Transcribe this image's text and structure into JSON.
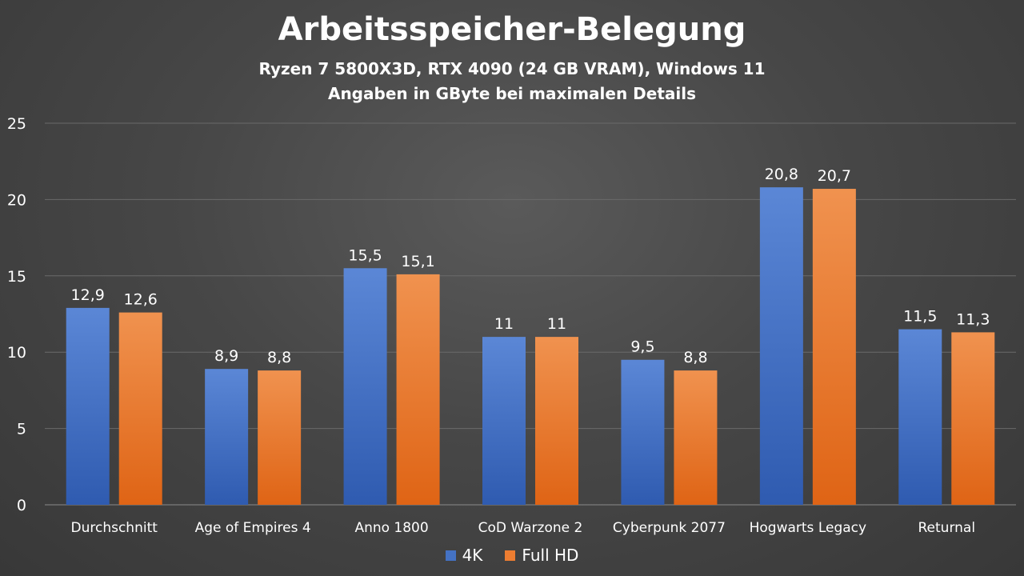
{
  "chart_data": {
    "type": "bar",
    "title": "Arbeitsspeicher-Belegung",
    "subtitle": [
      "Ryzen 7 5800X3D, RTX 4090 (24 GB VRAM), Windows 11",
      "Angaben in GByte bei maximalen Details"
    ],
    "categories": [
      "Durchschnitt",
      "Age of Empires 4",
      "Anno 1800",
      "CoD Warzone 2",
      "Cyberpunk 2077",
      "Hogwarts Legacy",
      "Returnal"
    ],
    "series": [
      {
        "name": "4K",
        "values": [
          12.9,
          8.9,
          15.5,
          11,
          9.5,
          20.8,
          11.5
        ],
        "labels": [
          "12,9",
          "8,9",
          "15,5",
          "11",
          "9,5",
          "20,8",
          "11,5"
        ],
        "color": "#4472c4"
      },
      {
        "name": "Full HD",
        "values": [
          12.6,
          8.8,
          15.1,
          11,
          8.8,
          20.7,
          11.3
        ],
        "labels": [
          "12,6",
          "8,8",
          "15,1",
          "11",
          "8,8",
          "20,7",
          "11,3"
        ],
        "color": "#ed7d31"
      }
    ],
    "ylim": [
      0,
      25
    ],
    "yticks": [
      0,
      5,
      10,
      15,
      20,
      25
    ],
    "grid": true,
    "legend": "bottom-center"
  }
}
